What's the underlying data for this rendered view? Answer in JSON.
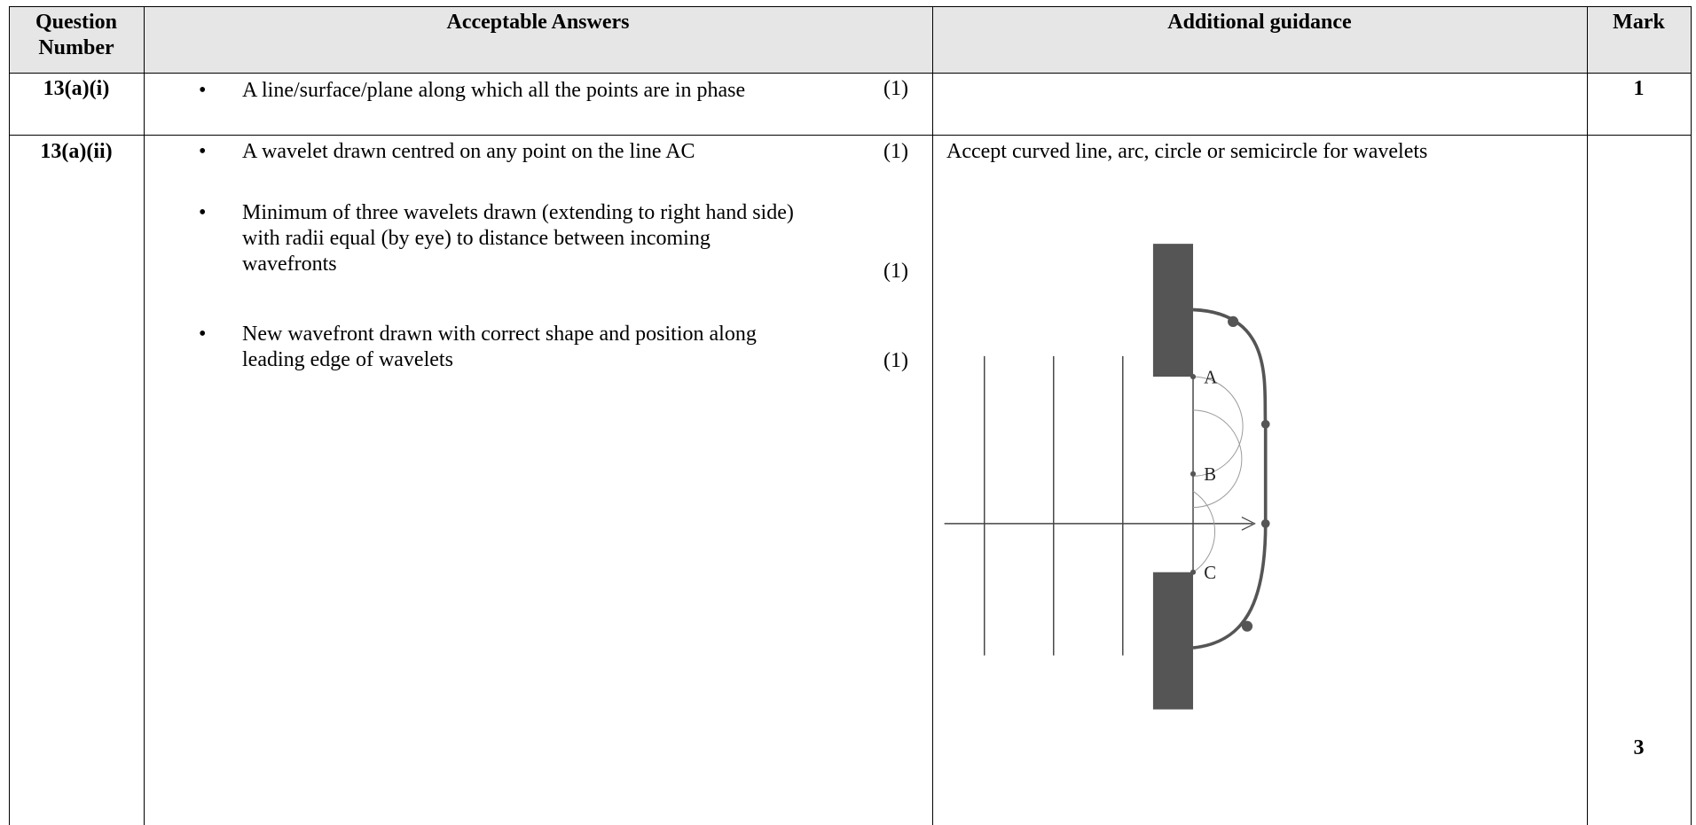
{
  "header": {
    "question_number": "Question Number",
    "answers": "Acceptable Answers",
    "guidance": "Additional guidance",
    "mark": "Mark"
  },
  "rows": [
    {
      "question": "13(a)(i)",
      "answers": [
        {
          "text": "A line/surface/plane along which all the points are in phase",
          "mark": "(1)"
        }
      ],
      "mark": "1"
    },
    {
      "question": "13(a)(ii)",
      "answers": [
        {
          "text": "A wavelet drawn centred on any point on the line AC",
          "mark": "(1)"
        },
        {
          "text": "Minimum of three wavelets drawn (extending to right hand side) with radii equal (by eye) to distance between incoming wavefronts",
          "mark": "(1)"
        },
        {
          "text": "New wavefront drawn with correct shape and position along leading edge of wavelets",
          "mark": "(1)"
        }
      ],
      "guidance": "Accept curved line, arc, circle or semicircle for wavelets",
      "figure": {
        "labels": [
          "A",
          "B",
          "C"
        ]
      },
      "mark": "3"
    }
  ]
}
